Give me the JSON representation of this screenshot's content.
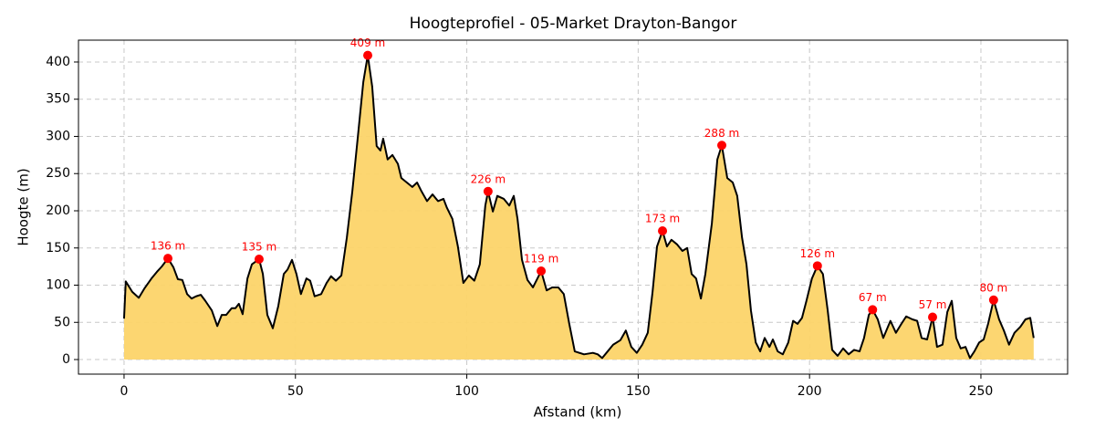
{
  "chart_data": {
    "type": "area",
    "title": "Hoogteprofiel - 05-Market Drayton-Bangor",
    "xlabel": "Afstand (km)",
    "ylabel": "Hoogte (m)",
    "x": [
      0,
      0.5,
      2.4,
      4.3,
      6,
      8,
      9.6,
      11,
      12.8,
      14.4,
      15.7,
      17,
      18.4,
      19.7,
      21,
      22.4,
      23.7,
      25.6,
      27.2,
      28.5,
      29.8,
      31.4,
      32.5,
      33.5,
      34.6,
      36,
      37.3,
      39.4,
      40.5,
      41.8,
      43.4,
      45,
      46.6,
      47.7,
      49,
      50.3,
      51.6,
      53.2,
      54.3,
      55.6,
      57.5,
      59.1,
      60.4,
      61.8,
      63.4,
      65,
      66.6,
      68.2,
      69.8,
      71.1,
      72.4,
      73.7,
      74.8,
      75.6,
      76.9,
      78.3,
      79.9,
      80.9,
      82.5,
      84.1,
      85.5,
      86.8,
      88.4,
      90,
      91.6,
      93.2,
      94.2,
      95.8,
      97.4,
      99,
      100.6,
      102.2,
      103.8,
      105.4,
      106.2,
      107.6,
      108.9,
      110.8,
      112.4,
      113.7,
      114.8,
      116.1,
      117.7,
      119.3,
      121.7,
      123.3,
      124.9,
      126.7,
      128.3,
      129.9,
      131.5,
      134.2,
      136.8,
      138.2,
      139.5,
      141.1,
      142.7,
      144.8,
      146.4,
      148,
      149.6,
      151.2,
      152.8,
      154.2,
      155.5,
      157.1,
      158.4,
      159.7,
      161.3,
      162.9,
      164.3,
      165.6,
      166.9,
      168.3,
      169.6,
      171.5,
      173.1,
      174.4,
      176,
      177.6,
      178.9,
      180.3,
      181.6,
      182.9,
      184.3,
      185.6,
      186.9,
      188.3,
      189.3,
      190.7,
      192.2,
      193.8,
      195.2,
      196.5,
      197.8,
      199.1,
      200.7,
      202.3,
      203.9,
      205.3,
      206.6,
      208.2,
      209.8,
      211.4,
      213,
      214.6,
      215.9,
      217.3,
      218.4,
      219.9,
      221.5,
      223.6,
      225.2,
      226.8,
      228.2,
      230,
      231.4,
      232.7,
      234.3,
      235.9,
      237.2,
      238.8,
      240.2,
      241.5,
      242.8,
      244.1,
      245.5,
      246.8,
      248.1,
      249.5,
      250.8,
      252.1,
      253.7,
      255.3,
      256.7,
      258.2,
      259.8,
      261.5,
      263,
      264.4,
      265.4
    ],
    "values": [
      55,
      105,
      91,
      83,
      96,
      109,
      118,
      125,
      136,
      124,
      108,
      107,
      88,
      82,
      85,
      87,
      79,
      66,
      45,
      60,
      60,
      69,
      69,
      75,
      61,
      109,
      128,
      135,
      115,
      60,
      42,
      72,
      115,
      121,
      134,
      115,
      88,
      109,
      106,
      85,
      88,
      103,
      112,
      106,
      113,
      164,
      226,
      299,
      373,
      409,
      367,
      287,
      281,
      297,
      269,
      275,
      263,
      244,
      238,
      232,
      238,
      226,
      213,
      222,
      213,
      216,
      204,
      189,
      152,
      103,
      113,
      106,
      128,
      207,
      226,
      199,
      220,
      216,
      207,
      220,
      189,
      134,
      107,
      97,
      119,
      93,
      97,
      97,
      88,
      48,
      11,
      7,
      9,
      7,
      2,
      11,
      20,
      26,
      39,
      17,
      9,
      20,
      36,
      91,
      152,
      173,
      152,
      161,
      155,
      146,
      150,
      115,
      109,
      82,
      115,
      183,
      269,
      288,
      244,
      238,
      220,
      164,
      128,
      66,
      23,
      11,
      29,
      17,
      27,
      11,
      7,
      23,
      52,
      48,
      56,
      79,
      109,
      126,
      115,
      66,
      13,
      5,
      15,
      7,
      13,
      11,
      29,
      60,
      67,
      54,
      29,
      52,
      36,
      48,
      58,
      54,
      52,
      29,
      27,
      57,
      17,
      20,
      64,
      79,
      29,
      15,
      17,
      2,
      11,
      23,
      27,
      48,
      80,
      54,
      39,
      20,
      36,
      44,
      54,
      56,
      29
    ],
    "color": "#000000",
    "fill_color": "#fcd469",
    "peak_color": "#ff0000",
    "peaks": [
      {
        "x": 12.8,
        "y": 136,
        "label": "136 m"
      },
      {
        "x": 39.4,
        "y": 135,
        "label": "135 m"
      },
      {
        "x": 71.1,
        "y": 409,
        "label": "409 m"
      },
      {
        "x": 106.2,
        "y": 226,
        "label": "226 m"
      },
      {
        "x": 121.7,
        "y": 119,
        "label": "119 m"
      },
      {
        "x": 157.1,
        "y": 173,
        "label": "173 m"
      },
      {
        "x": 174.4,
        "y": 288,
        "label": "288 m"
      },
      {
        "x": 202.3,
        "y": 126,
        "label": "126 m"
      },
      {
        "x": 218.4,
        "y": 67,
        "label": "67 m"
      },
      {
        "x": 235.9,
        "y": 57,
        "label": "57 m"
      },
      {
        "x": 253.7,
        "y": 80,
        "label": "80 m"
      }
    ],
    "xlim": [
      -13.3,
      275.3
    ],
    "ylim": [
      -19.6,
      429.4
    ],
    "xticks": [
      0,
      50,
      100,
      150,
      200,
      250
    ],
    "yticks": [
      0,
      50,
      100,
      150,
      200,
      250,
      300,
      350,
      400
    ],
    "grid": true
  }
}
